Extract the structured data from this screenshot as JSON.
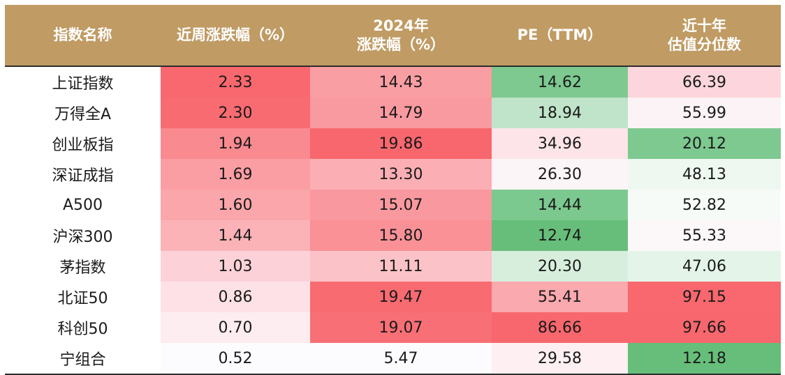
{
  "colors": {
    "header_bg": "#c09b64",
    "header_text": "#ffffff",
    "strong_red": "#f8676d",
    "light_pink": "#fdeef1",
    "strong_green": "#67be7a",
    "light_green": "#e3f4e7"
  },
  "header": {
    "col1": "指数名称",
    "col2": "近周涨跌幅（%）",
    "col3_line1": "2024年",
    "col3_line2": "涨跌幅（%）",
    "col4": "PE（TTM）",
    "col5_line1": "近十年",
    "col5_line2": "估值分位数"
  },
  "rows": [
    {
      "name": "上证指数",
      "weekly": "2.33",
      "ytd": "14.43",
      "pe": "14.62",
      "pct": "66.39",
      "c_weekly": "#f8686e",
      "c_ytd": "#f99ea3",
      "c_pe": "#7dc990",
      "c_pct": "#fcd6dc"
    },
    {
      "name": "万得全A",
      "weekly": "2.30",
      "ytd": "14.79",
      "pe": "18.94",
      "pct": "55.99",
      "c_weekly": "#f86b71",
      "c_ytd": "#f99aa0",
      "c_pe": "#bfe4c9",
      "c_pct": "#fbf3f6"
    },
    {
      "name": "创业板指",
      "weekly": "1.94",
      "ytd": "19.86",
      "pe": "34.96",
      "pct": "20.12",
      "c_weekly": "#f98a90",
      "c_ytd": "#f8676d",
      "c_pe": "#fde4e8",
      "c_pct": "#7dc990"
    },
    {
      "name": "深证成指",
      "weekly": "1.69",
      "ytd": "13.30",
      "pe": "26.30",
      "pct": "48.13",
      "c_weekly": "#fa9ea3",
      "c_ytd": "#fbaeb3",
      "c_pe": "#fcf5f7",
      "c_pct": "#eef8f1"
    },
    {
      "name": "A500",
      "weekly": "1.60",
      "ytd": "15.07",
      "pe": "14.44",
      "pct": "52.82",
      "c_weekly": "#faa6ab",
      "c_ytd": "#f9999f",
      "c_pe": "#7cc98f",
      "c_pct": "#f7fbf8"
    },
    {
      "name": "沪深300",
      "weekly": "1.44",
      "ytd": "15.80",
      "pe": "12.74",
      "pct": "55.33",
      "c_weekly": "#fbb3b8",
      "c_ytd": "#f99197",
      "c_pe": "#67be7a",
      "c_pct": "#fcf7f9"
    },
    {
      "name": "茅指数",
      "weekly": "1.03",
      "ytd": "11.11",
      "pe": "20.30",
      "pct": "47.06",
      "c_weekly": "#fcd2d8",
      "c_ytd": "#fbc2c7",
      "c_pe": "#d7eedd",
      "c_pct": "#e4f4e8"
    },
    {
      "name": "北证50",
      "weekly": "0.86",
      "ytd": "19.47",
      "pe": "55.41",
      "pct": "97.15",
      "c_weekly": "#fde1e6",
      "c_ytd": "#f86b71",
      "c_pe": "#faa9ae",
      "c_pct": "#f8686e"
    },
    {
      "name": "科创50",
      "weekly": "0.70",
      "ytd": "19.07",
      "pe": "86.66",
      "pct": "97.66",
      "c_weekly": "#fdedf1",
      "c_ytd": "#f86f75",
      "c_pe": "#f8676d",
      "c_pct": "#f8676d"
    },
    {
      "name": "宁组合",
      "weekly": "0.52",
      "ytd": "5.47",
      "pe": "29.58",
      "pct": "12.18",
      "c_weekly": "#fcfbfd",
      "c_ytd": "#fcfbfd",
      "c_pe": "#fdeff2",
      "c_pct": "#67be7a"
    }
  ]
}
